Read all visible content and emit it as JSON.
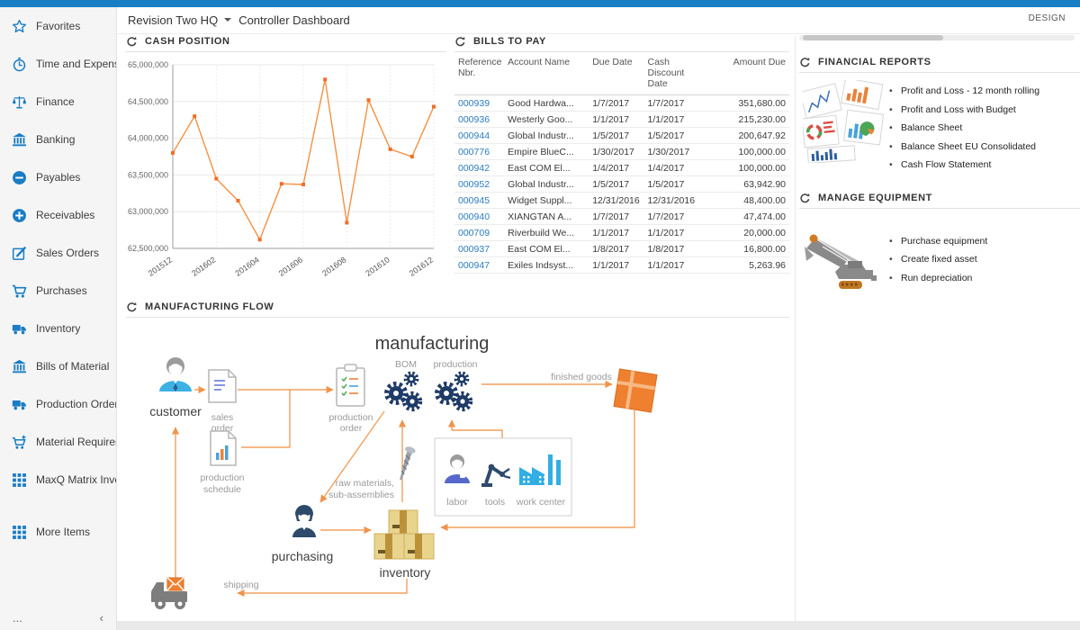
{
  "colors": {
    "topbar_blue": "#1a7ec5",
    "sidebar_icon_blue": "#1a7dc4",
    "link_blue": "#2b7bc0",
    "chart_line_orange": "#f49142",
    "chart_marker_orange": "#ef6e26",
    "diagram_arrow_orange": "#f0944d",
    "gear_navy": "#1e3a66"
  },
  "header": {
    "company": "Revision Two HQ",
    "page_title": "Controller Dashboard",
    "design_button": "DESIGN"
  },
  "sidebar": {
    "items": [
      {
        "label": "Favorites",
        "icon": "star"
      },
      {
        "label": "Time and Expenses",
        "icon": "clock"
      },
      {
        "label": "Finance",
        "icon": "scales"
      },
      {
        "label": "Banking",
        "icon": "bank"
      },
      {
        "label": "Payables",
        "icon": "minus-circle"
      },
      {
        "label": "Receivables",
        "icon": "plus-circle"
      },
      {
        "label": "Sales Orders",
        "icon": "edit"
      },
      {
        "label": "Purchases",
        "icon": "cart"
      },
      {
        "label": "Inventory",
        "icon": "truck"
      },
      {
        "label": "Bills of Material",
        "icon": "bank"
      },
      {
        "label": "Production Orders",
        "icon": "truck"
      },
      {
        "label": "Material Requirem...",
        "icon": "cart-plus"
      },
      {
        "label": "MaxQ Matrix Invent...",
        "icon": "grid"
      },
      {
        "label": "More Items",
        "icon": "grid",
        "gap": true
      }
    ],
    "footer": {
      "more": "...",
      "collapse": "‹"
    }
  },
  "widgets": {
    "cash_position": {
      "title": "CASH POSITION"
    },
    "bills_to_pay": {
      "title": "BILLS TO PAY",
      "columns": [
        "Reference Nbr.",
        "Account Name",
        "Due Date",
        "Cash Discount Date",
        "Amount Due"
      ],
      "rows": [
        [
          "000939",
          "Good Hardwa...",
          "1/7/2017",
          "1/7/2017",
          "351,680.00"
        ],
        [
          "000936",
          "Westerly Goo...",
          "1/1/2017",
          "1/1/2017",
          "215,230.00"
        ],
        [
          "000944",
          "Global Industr...",
          "1/5/2017",
          "1/5/2017",
          "200,647.92"
        ],
        [
          "000776",
          "Empire BlueC...",
          "1/30/2017",
          "1/30/2017",
          "100,000.00"
        ],
        [
          "000942",
          "East COM El...",
          "1/4/2017",
          "1/4/2017",
          "100,000.00"
        ],
        [
          "000952",
          "Global Industr...",
          "1/5/2017",
          "1/5/2017",
          "63,942.90"
        ],
        [
          "000945",
          "Widget Suppl...",
          "12/31/2016",
          "12/31/2016",
          "48,400.00"
        ],
        [
          "000940",
          "XIANGTAN A...",
          "1/7/2017",
          "1/7/2017",
          "47,474.00"
        ],
        [
          "000709",
          "Riverbuild We...",
          "1/1/2017",
          "1/1/2017",
          "20,000.00"
        ],
        [
          "000937",
          "East COM El...",
          "1/8/2017",
          "1/8/2017",
          "16,800.00"
        ],
        [
          "000947",
          "Exiles Indsyst...",
          "1/1/2017",
          "1/1/2017",
          "5,263.96"
        ]
      ]
    },
    "financial_reports": {
      "title": "FINANCIAL REPORTS",
      "links": [
        "Profit and Loss - 12 month rolling",
        "Profit and Loss with Budget",
        "Balance Sheet",
        "Balance Sheet EU Consolidated",
        "Cash Flow Statement"
      ]
    },
    "manage_equipment": {
      "title": "MANAGE EQUIPMENT",
      "links": [
        "Purchase equipment",
        "Create fixed asset",
        "Run depreciation"
      ]
    },
    "manufacturing_flow": {
      "title": "MANUFACTURING FLOW",
      "labels": {
        "title_text": "manufacturing",
        "customer": "customer",
        "sales_order_1": "sales",
        "sales_order_2": "order",
        "production_order_1": "production",
        "production_order_2": "order",
        "production_schedule_1": "production",
        "production_schedule_2": "schedule",
        "bom": "BOM",
        "production": "production",
        "finished_goods": "finished goods",
        "raw_materials_1": "raw materials,",
        "raw_materials_2": "sub-assemblies",
        "purchasing": "purchasing",
        "inventory": "inventory",
        "labor": "labor",
        "tools": "tools",
        "work_center": "work center",
        "shipping": "shipping"
      }
    }
  },
  "chart_data": {
    "type": "line",
    "title": "CASH POSITION",
    "x": [
      "201512",
      "201601",
      "201602",
      "201603",
      "201604",
      "201605",
      "201606",
      "201607",
      "201608",
      "201609",
      "201610",
      "201611",
      "201612"
    ],
    "values": [
      63800000,
      64300000,
      63450000,
      63150000,
      62620000,
      63380000,
      63370000,
      64800000,
      62850000,
      64520000,
      63850000,
      63750000,
      64430000
    ],
    "x_tick_labels": [
      "201512",
      "201602",
      "201604",
      "201606",
      "201608",
      "201610",
      "201612"
    ],
    "y_ticks": [
      "65,000,000",
      "64,500,000",
      "64,000,000",
      "63,500,000",
      "63,000,000",
      "62,500,000"
    ],
    "ylim": [
      62500000,
      65000000
    ],
    "grid": true,
    "legend": "none"
  }
}
